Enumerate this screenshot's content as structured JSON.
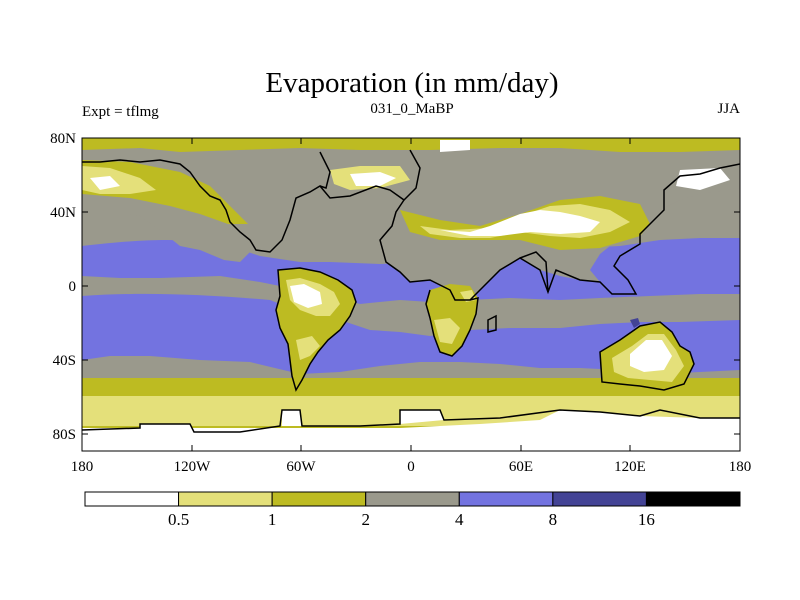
{
  "title": "Evaporation (in mm/day)",
  "left_label": "Expt = tflmg",
  "center_label": "031_0_MaBP",
  "right_label": "JJA",
  "lat_ticks": [
    "80N",
    "40N",
    "0",
    "40S",
    "80S"
  ],
  "lon_ticks": [
    "180",
    "120W",
    "60W",
    "0",
    "60E",
    "120E",
    "180"
  ],
  "colorbar": {
    "levels": [
      "0.5",
      "1",
      "2",
      "4",
      "8",
      "16"
    ],
    "colors": [
      "#ffffff",
      "#e4e07a",
      "#bdbb22",
      "#9a998c",
      "#7373e0",
      "#434395",
      "#000000"
    ]
  },
  "colors": {
    "ocean_main": "#7373e0",
    "mid_lat": "#9a998c",
    "yellow": "#bdbb22",
    "pale": "#e4e07a",
    "white": "#ffffff",
    "deep": "#434395",
    "coast": "#000000"
  }
}
